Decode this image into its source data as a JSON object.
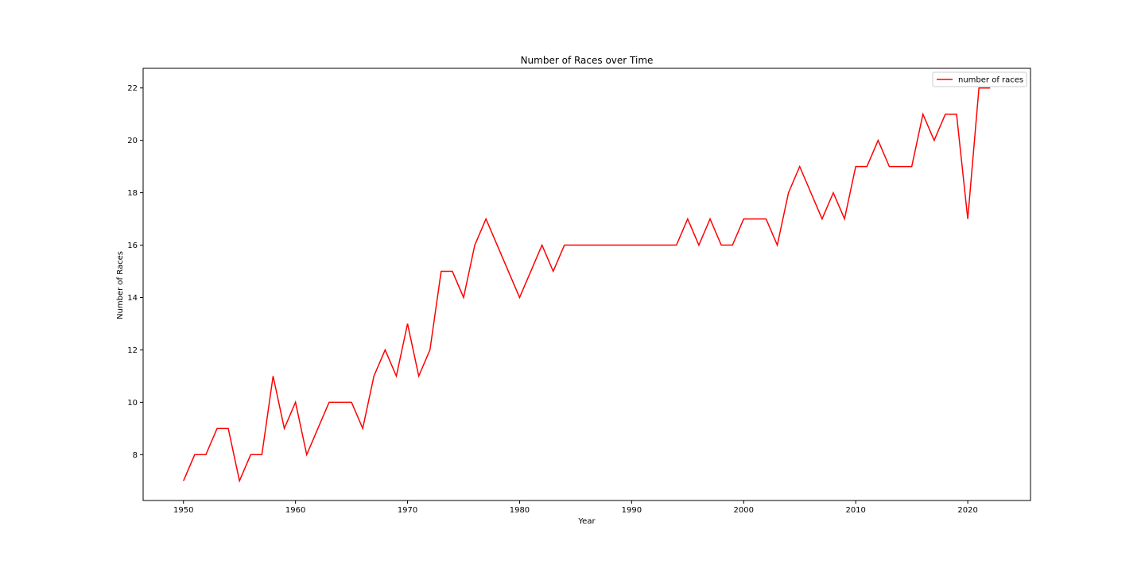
{
  "chart_data": {
    "type": "line",
    "title": "Number of Races over Time",
    "xlabel": "Year",
    "ylabel": "Number of Races",
    "xlim": [
      1946.4,
      2025.6
    ],
    "ylim": [
      6.25,
      22.75
    ],
    "xticks": [
      1950,
      1960,
      1970,
      1980,
      1990,
      2000,
      2010,
      2020
    ],
    "yticks": [
      8,
      10,
      12,
      14,
      16,
      18,
      20,
      22
    ],
    "grid": false,
    "legend_position": "upper right",
    "series": [
      {
        "name": "number of races",
        "color": "#ff0000",
        "x": [
          1950,
          1951,
          1952,
          1953,
          1954,
          1955,
          1956,
          1957,
          1958,
          1959,
          1960,
          1961,
          1962,
          1963,
          1964,
          1965,
          1966,
          1967,
          1968,
          1969,
          1970,
          1971,
          1972,
          1973,
          1974,
          1975,
          1976,
          1977,
          1978,
          1979,
          1980,
          1981,
          1982,
          1983,
          1984,
          1985,
          1986,
          1987,
          1988,
          1989,
          1990,
          1991,
          1992,
          1993,
          1994,
          1995,
          1996,
          1997,
          1998,
          1999,
          2000,
          2001,
          2002,
          2003,
          2004,
          2005,
          2006,
          2007,
          2008,
          2009,
          2010,
          2011,
          2012,
          2013,
          2014,
          2015,
          2016,
          2017,
          2018,
          2019,
          2020,
          2021,
          2022
        ],
        "values": [
          7,
          8,
          8,
          9,
          9,
          7,
          8,
          8,
          11,
          9,
          10,
          8,
          9,
          10,
          10,
          10,
          9,
          11,
          12,
          11,
          13,
          11,
          12,
          15,
          15,
          14,
          16,
          17,
          16,
          15,
          14,
          15,
          16,
          15,
          16,
          16,
          16,
          16,
          16,
          16,
          16,
          16,
          16,
          16,
          16,
          17,
          16,
          17,
          16,
          16,
          17,
          17,
          17,
          16,
          18,
          19,
          18,
          17,
          18,
          17,
          19,
          19,
          20,
          19,
          19,
          19,
          21,
          20,
          21,
          21,
          17,
          22,
          22
        ]
      }
    ]
  }
}
